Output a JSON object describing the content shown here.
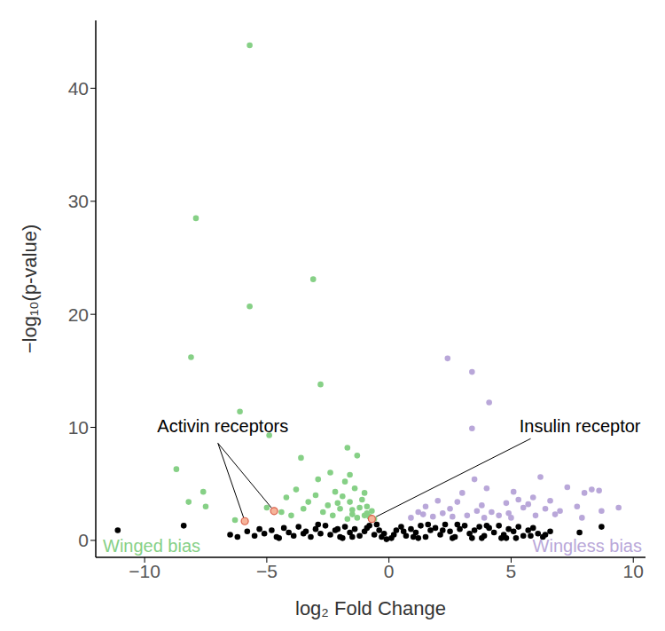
{
  "chart_data": {
    "type": "scatter",
    "x_label": "log₂ Fold Change",
    "y_label": "−log₁₀(p-value)",
    "xlim": [
      -12,
      10.5
    ],
    "ylim": [
      -1.5,
      46
    ],
    "xticks": [
      {
        "value": -10,
        "label": "−10"
      },
      {
        "value": -5,
        "label": "−5"
      },
      0,
      5,
      10
    ],
    "yticks": [
      0,
      10,
      20,
      30,
      40
    ],
    "grid": false,
    "series": [
      {
        "name": "Winged bias",
        "color": "#86d086",
        "x": [
          -5.7,
          -7.9,
          -3.1,
          -5.7,
          -8.1,
          -2.8,
          -6.1,
          -4.9,
          -8.7,
          -7.6,
          -3.6,
          -1.7,
          -1.3,
          -2.4,
          -8.2,
          -7.5,
          -6.3,
          -5.0,
          -4.4,
          -4.2,
          -3.8,
          -3.3,
          -3.0,
          -2.7,
          -2.5,
          -2.2,
          -2.0,
          -1.8,
          -1.6,
          -1.5,
          -1.4,
          -1.2,
          -1.1,
          -1.0,
          -0.9,
          -0.8,
          -1.9,
          -2.3,
          -1.6,
          -1.0,
          -0.7,
          -1.3,
          -3.5,
          -4.0,
          -2.9,
          -1.7,
          -0.6,
          -2.1,
          -1.5,
          -0.9
        ],
        "y": [
          43.8,
          28.5,
          23.1,
          20.7,
          16.2,
          13.8,
          11.4,
          9.3,
          6.3,
          4.3,
          7.3,
          8.2,
          7.5,
          6.0,
          3.4,
          3.0,
          1.8,
          2.9,
          2.5,
          3.8,
          4.5,
          3.4,
          4.0,
          2.5,
          3.1,
          4.3,
          2.8,
          5.2,
          3.4,
          2.3,
          4.6,
          2.9,
          3.6,
          2.2,
          3.0,
          2.1,
          3.9,
          2.2,
          5.8,
          4.2,
          2.6,
          2.0,
          2.8,
          2.2,
          5.4,
          1.9,
          1.9,
          3.3,
          2.7,
          2.4
        ]
      },
      {
        "name": "Wingless bias",
        "color": "#b9a7d9",
        "x": [
          2.4,
          3.4,
          4.1,
          3.4,
          3.5,
          3.0,
          2.0,
          1.2,
          1.5,
          2.5,
          3.8,
          4.2,
          4.8,
          5.1,
          5.5,
          5.9,
          6.2,
          6.6,
          7.0,
          7.3,
          7.7,
          8.0,
          8.3,
          8.7,
          9.4,
          6.0,
          4.5,
          3.2,
          2.8,
          1.8,
          0.9,
          5.3,
          4.0,
          6.8,
          7.9,
          8.6,
          2.2,
          3.6,
          5.7,
          6.4,
          4.9,
          5.0,
          3.9,
          2.6,
          1.4
        ],
        "y": [
          16.1,
          14.9,
          12.2,
          9.9,
          5.4,
          4.2,
          3.5,
          2.5,
          3.0,
          2.8,
          3.1,
          2.5,
          3.3,
          4.3,
          2.9,
          3.8,
          5.6,
          3.5,
          2.6,
          4.7,
          3.0,
          4.2,
          4.5,
          2.6,
          2.9,
          2.2,
          2.2,
          2.2,
          3.4,
          2.1,
          2.0,
          3.6,
          4.6,
          2.3,
          2.0,
          4.4,
          2.4,
          2.6,
          3.2,
          2.8,
          2.4,
          2.0,
          2.0,
          2.1,
          2.3
        ]
      },
      {
        "color": "#000000",
        "x": [
          -11.1,
          -8.4,
          -6.5,
          -6.2,
          -5.8,
          -5.5,
          -5.3,
          -5.1,
          -4.8,
          -4.6,
          -4.3,
          -4.1,
          -3.9,
          -3.7,
          -3.4,
          -3.2,
          -3.0,
          -2.8,
          -2.6,
          -2.4,
          -2.2,
          -2.0,
          -1.8,
          -1.6,
          -1.4,
          -1.2,
          -1.0,
          -0.8,
          -0.6,
          -0.4,
          -0.3,
          -0.2,
          -0.1,
          0.1,
          0.2,
          0.3,
          0.5,
          0.7,
          0.9,
          1.1,
          1.3,
          1.5,
          1.7,
          1.9,
          2.1,
          2.3,
          2.5,
          2.7,
          2.9,
          3.1,
          3.3,
          3.5,
          3.7,
          3.9,
          4.1,
          4.3,
          4.5,
          4.7,
          4.9,
          5.1,
          5.3,
          5.5,
          5.7,
          5.9,
          6.1,
          6.3,
          6.6,
          7.8,
          8.7,
          -3.5,
          -2.9,
          -2.1,
          -1.5,
          -0.9,
          -0.5,
          0.6,
          1.0,
          1.6,
          2.2,
          2.8,
          3.4,
          4.0,
          4.6,
          5.2,
          5.8,
          -4.5,
          -1.9,
          1.2,
          2.6,
          3.8,
          4.8,
          6.4
        ],
        "y": [
          0.9,
          1.3,
          0.5,
          0.3,
          0.8,
          0.4,
          1.0,
          0.6,
          0.9,
          0.3,
          1.1,
          0.7,
          0.4,
          1.2,
          0.8,
          0.3,
          1.0,
          0.6,
          1.3,
          0.5,
          0.9,
          0.3,
          1.2,
          0.7,
          1.0,
          0.4,
          0.8,
          1.3,
          0.5,
          0.9,
          0.3,
          0.6,
          0.1,
          0.2,
          0.5,
          0.9,
          1.2,
          0.4,
          1.0,
          0.7,
          1.3,
          0.3,
          0.9,
          1.1,
          0.5,
          1.4,
          0.8,
          0.3,
          1.0,
          1.3,
          0.6,
          0.9,
          1.2,
          0.4,
          1.1,
          0.7,
          1.3,
          0.5,
          1.0,
          0.8,
          1.2,
          0.4,
          0.9,
          1.1,
          0.6,
          0.3,
          0.8,
          0.7,
          1.2,
          0.6,
          1.4,
          1.0,
          0.3,
          1.1,
          1.4,
          0.8,
          0.3,
          1.4,
          0.9,
          1.4,
          0.2,
          1.3,
          0.2,
          0.2,
          0.4,
          0.2,
          0.2,
          0.2,
          0.2,
          0.2,
          0.2,
          0.5
        ]
      }
    ],
    "annotations": [
      {
        "text": "Activin receptors",
        "points": [
          [
            -5.9,
            1.7
          ],
          [
            -4.7,
            2.6
          ]
        ]
      },
      {
        "text": "Insulin receptor",
        "points": [
          [
            -0.7,
            1.9
          ]
        ]
      }
    ]
  }
}
